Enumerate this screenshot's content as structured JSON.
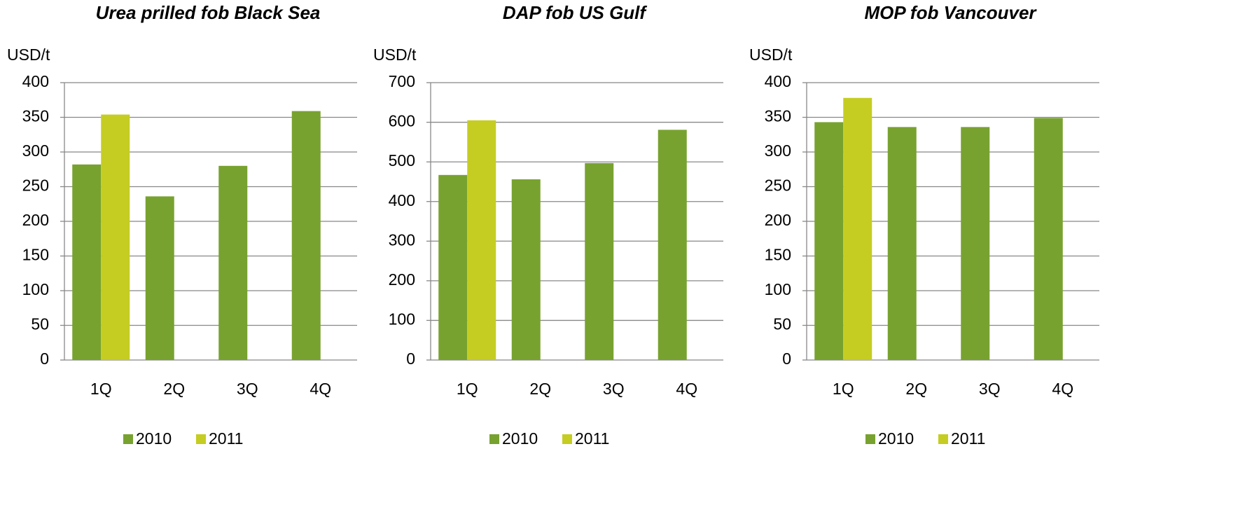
{
  "chart_data": [
    {
      "type": "bar",
      "title": "Urea prilled fob Black Sea",
      "y_label": "USD/t",
      "categories": [
        "1Q",
        "2Q",
        "3Q",
        "4Q"
      ],
      "series": [
        {
          "name": "2010",
          "color": "#78a22f",
          "values": [
            282,
            236,
            280,
            359
          ]
        },
        {
          "name": "2011",
          "color": "#c5cd22",
          "values": [
            354,
            null,
            null,
            null
          ]
        }
      ],
      "ylim": [
        0,
        400
      ],
      "yticks": [
        0,
        50,
        100,
        150,
        200,
        250,
        300,
        350,
        400
      ],
      "grid": true,
      "legend": "bottom"
    },
    {
      "type": "bar",
      "title": "DAP fob US Gulf",
      "y_label": "USD/t",
      "categories": [
        "1Q",
        "2Q",
        "3Q",
        "4Q"
      ],
      "series": [
        {
          "name": "2010",
          "color": "#78a22f",
          "values": [
            467,
            456,
            497,
            581
          ]
        },
        {
          "name": "2011",
          "color": "#c5cd22",
          "values": [
            605,
            null,
            null,
            null
          ]
        }
      ],
      "ylim": [
        0,
        700
      ],
      "yticks": [
        0,
        100,
        200,
        300,
        400,
        500,
        600,
        700
      ],
      "grid": true,
      "legend": "bottom"
    },
    {
      "type": "bar",
      "title": "MOP fob Vancouver",
      "y_label": "USD/t",
      "categories": [
        "1Q",
        "2Q",
        "3Q",
        "4Q"
      ],
      "series": [
        {
          "name": "2010",
          "color": "#78a22f",
          "values": [
            343,
            336,
            336,
            349
          ]
        },
        {
          "name": "2011",
          "color": "#c5cd22",
          "values": [
            378,
            null,
            null,
            null
          ]
        }
      ],
      "ylim": [
        0,
        400
      ],
      "yticks": [
        0,
        50,
        100,
        150,
        200,
        250,
        300,
        350,
        400
      ],
      "grid": true,
      "legend": "bottom"
    }
  ]
}
